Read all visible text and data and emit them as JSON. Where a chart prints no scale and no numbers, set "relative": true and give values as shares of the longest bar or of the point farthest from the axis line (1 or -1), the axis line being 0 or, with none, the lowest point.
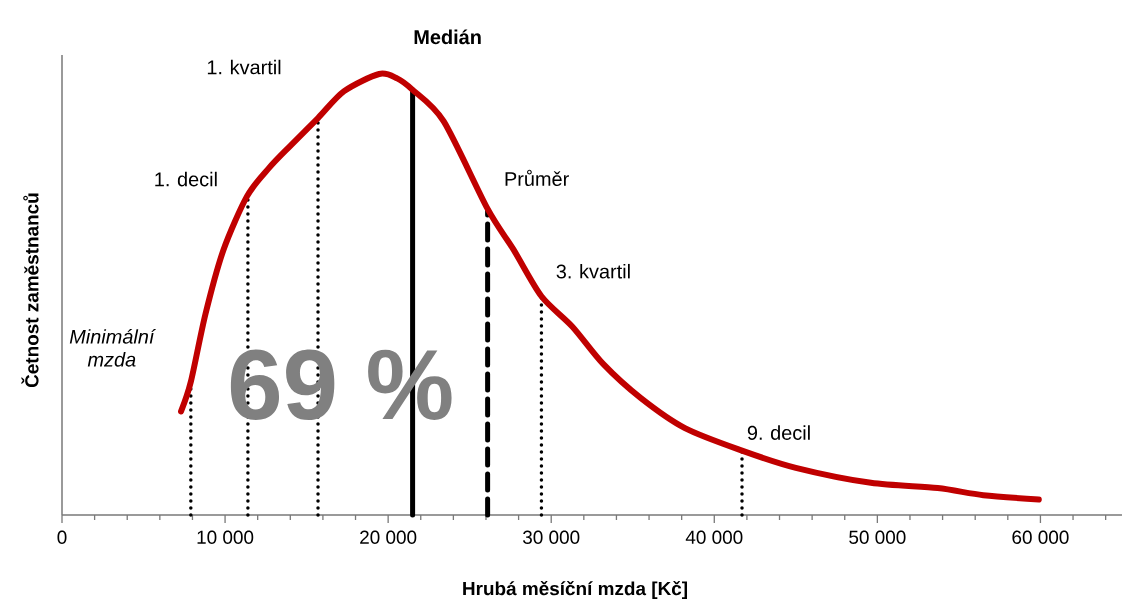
{
  "chart_data": {
    "type": "line",
    "relative": true,
    "xlabel": "Hrubá měsíční mzda [Kč]",
    "ylabel": "Četnost zaměstnanců",
    "xlim": [
      0,
      65000
    ],
    "xticks": [
      0,
      {
        "value": 2000,
        "label": null
      },
      {
        "value": 4000,
        "label": null
      },
      {
        "value": 6000,
        "label": null
      },
      {
        "value": 8000,
        "label": null
      },
      {
        "value": 10000,
        "label": "10 000"
      },
      {
        "value": 12000,
        "label": null
      },
      {
        "value": 14000,
        "label": null
      },
      {
        "value": 16000,
        "label": null
      },
      {
        "value": 18000,
        "label": null
      },
      {
        "value": 20000,
        "label": "20 000"
      },
      {
        "value": 22000,
        "label": null
      },
      {
        "value": 24000,
        "label": null
      },
      {
        "value": 26000,
        "label": null
      },
      {
        "value": 28000,
        "label": null
      },
      {
        "value": 30000,
        "label": "30 000"
      },
      {
        "value": 32000,
        "label": null
      },
      {
        "value": 34000,
        "label": null
      },
      {
        "value": 36000,
        "label": null
      },
      {
        "value": 38000,
        "label": null
      },
      {
        "value": 40000,
        "label": "40 000"
      },
      {
        "value": 42000,
        "label": null
      },
      {
        "value": 44000,
        "label": null
      },
      {
        "value": 46000,
        "label": null
      },
      {
        "value": 48000,
        "label": null
      },
      {
        "value": 50000,
        "label": "50 000"
      },
      {
        "value": 52000,
        "label": null
      },
      {
        "value": 54000,
        "label": null
      },
      {
        "value": 56000,
        "label": null
      },
      {
        "value": 58000,
        "label": null
      },
      {
        "value": 60000,
        "label": "60 000"
      },
      {
        "value": 62000,
        "label": null
      },
      {
        "value": 64000,
        "label": null
      }
    ],
    "x": [
      7300,
      7900,
      8800,
      9900,
      11350,
      12700,
      14000,
      15700,
      17300,
      19450,
      20550,
      21500,
      23400,
      26100,
      27700,
      29400,
      31300,
      33200,
      35500,
      38200,
      41700,
      45000,
      49600,
      53700,
      56500,
      59900
    ],
    "series": [
      {
        "color": "#c00000",
        "values": [
          0.235,
          0.302,
          0.456,
          0.601,
          0.723,
          0.787,
          0.837,
          0.9,
          0.961,
          1.0,
          0.99,
          0.964,
          0.893,
          0.694,
          0.601,
          0.496,
          0.427,
          0.342,
          0.265,
          0.197,
          0.146,
          0.107,
          0.073,
          0.061,
          0.045,
          0.035
        ]
      }
    ],
    "ref_lines": [
      {
        "axis": "x",
        "value": 7900,
        "label": "Minimální mzda",
        "color": "#000000",
        "line_style": "dotted"
      },
      {
        "axis": "x",
        "value": 11400,
        "label": "1. decil",
        "color": "#000000",
        "line_style": "dotted"
      },
      {
        "axis": "x",
        "value": 15700,
        "label": "1. kvartil",
        "color": "#000000",
        "line_style": "dotted"
      },
      {
        "axis": "x",
        "value": 21500,
        "label": "Medián",
        "color": "#000000",
        "line_style": "solid"
      },
      {
        "axis": "x",
        "value": 26100,
        "label": "Průměr",
        "color": "#000000",
        "line_style": "dashed"
      },
      {
        "axis": "x",
        "value": 29400,
        "label": "3. kvartil",
        "color": "#000000",
        "line_style": "dotted"
      },
      {
        "axis": "x",
        "value": 41700,
        "label": "9. decil",
        "color": "#000000",
        "line_style": "dotted"
      }
    ],
    "annotations": [
      "69 %"
    ]
  }
}
